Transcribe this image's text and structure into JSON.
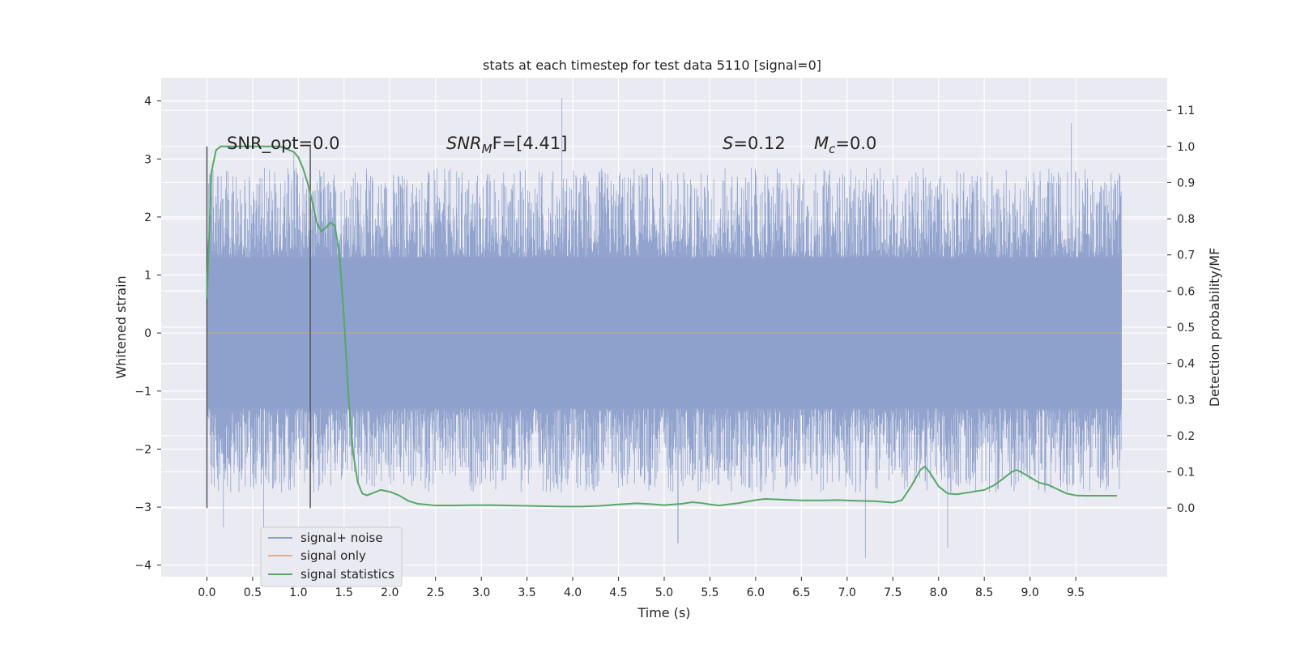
{
  "chart_data": {
    "type": "line",
    "title": "stats at each timestep for test data 5110 [signal=0]",
    "xlabel": "Time (s)",
    "ylabel": "Whitened strain",
    "ylabel_right": "Detection probability/MF",
    "xlim": [
      -0.5,
      10.5
    ],
    "ylim": [
      -4.2,
      4.4
    ],
    "ylim_right": [
      -0.19,
      1.19
    ],
    "xticks": [
      0.0,
      0.5,
      1.0,
      1.5,
      2.0,
      2.5,
      3.0,
      3.5,
      4.0,
      4.5,
      5.0,
      5.5,
      6.0,
      6.5,
      7.0,
      7.5,
      8.0,
      8.5,
      9.0,
      9.5
    ],
    "xtick_labels": [
      "0.0",
      "0.5",
      "1.0",
      "1.5",
      "2.0",
      "2.5",
      "3.0",
      "3.5",
      "4.0",
      "4.5",
      "5.0",
      "5.5",
      "6.0",
      "6.5",
      "7.0",
      "7.5",
      "8.0",
      "8.5",
      "9.0",
      "9.5"
    ],
    "yticks": [
      4,
      3,
      2,
      1,
      0,
      -1,
      -2,
      -3,
      -4
    ],
    "ytick_labels": [
      "4",
      "3",
      "2",
      "1",
      "0",
      "−1",
      "−2",
      "−3",
      "−4"
    ],
    "yticks_right": [
      1.1,
      1.0,
      0.9,
      0.8,
      0.7,
      0.6,
      0.5,
      0.4,
      0.3,
      0.2,
      0.1,
      0.0
    ],
    "ytick_labels_right": [
      "1.1",
      "1.0",
      "0.9",
      "0.8",
      "0.7",
      "0.6",
      "0.5",
      "0.4",
      "0.3",
      "0.2",
      "0.1",
      "0.0"
    ],
    "grid": true,
    "legend_position": "bottom-left",
    "annotations": {
      "snr_opt": "SNR_opt=0.0",
      "snr_mf_prefix": "SNR",
      "snr_mf_sub": "M",
      "snr_mf_suffix": "F=[4.41]",
      "s_label": "S",
      "s_value": "=0.12",
      "mc_label": "M",
      "mc_sub": "c",
      "mc_value": "=0.0"
    },
    "vertical_markers": [
      0.0,
      1.13
    ],
    "noise_envelope": {
      "x_range": [
        0.0,
        10.0
      ],
      "typical_band": [
        -1.3,
        1.3
      ],
      "notable_peaks": [
        {
          "x": 3.88,
          "y": 4.05
        },
        {
          "x": 9.45,
          "y": 3.62
        },
        {
          "x": 0.95,
          "y": 3.1
        },
        {
          "x": 5.15,
          "y": -3.62
        },
        {
          "x": 7.2,
          "y": -3.88
        },
        {
          "x": 8.1,
          "y": -3.7
        },
        {
          "x": 0.18,
          "y": -3.35
        },
        {
          "x": 0.62,
          "y": -3.35
        }
      ]
    },
    "series": [
      {
        "name": "signal+ noise",
        "color": "#8da0cb",
        "axis": "left",
        "values": "noise envelope (see noise_envelope)"
      },
      {
        "name": "signal only",
        "color": "#e8a88c",
        "axis": "left",
        "x": [
          0.0,
          10.0
        ],
        "y": [
          0.0,
          0.0
        ]
      },
      {
        "name": "signal statistics",
        "color": "#55a868",
        "axis": "right",
        "x": [
          0.0,
          0.05,
          0.1,
          0.15,
          0.2,
          0.3,
          0.4,
          0.5,
          0.6,
          0.7,
          0.8,
          0.9,
          0.95,
          1.0,
          1.05,
          1.1,
          1.15,
          1.2,
          1.25,
          1.3,
          1.35,
          1.4,
          1.45,
          1.5,
          1.55,
          1.6,
          1.65,
          1.7,
          1.75,
          1.8,
          1.9,
          2.0,
          2.1,
          2.2,
          2.3,
          2.5,
          2.7,
          2.9,
          3.1,
          3.3,
          3.5,
          3.7,
          3.9,
          4.1,
          4.3,
          4.5,
          4.7,
          4.9,
          5.0,
          5.1,
          5.2,
          5.3,
          5.4,
          5.5,
          5.6,
          5.8,
          6.0,
          6.1,
          6.3,
          6.5,
          6.7,
          6.9,
          7.1,
          7.3,
          7.5,
          7.6,
          7.7,
          7.8,
          7.85,
          7.9,
          8.0,
          8.1,
          8.2,
          8.3,
          8.5,
          8.6,
          8.7,
          8.8,
          8.85,
          8.9,
          9.0,
          9.1,
          9.2,
          9.3,
          9.4,
          9.5,
          9.6,
          9.8,
          9.95
        ],
        "y": [
          0.58,
          0.93,
          0.99,
          1.0,
          1.0,
          1.0,
          1.0,
          1.0,
          1.0,
          1.0,
          1.0,
          0.99,
          0.985,
          0.97,
          0.94,
          0.9,
          0.85,
          0.79,
          0.765,
          0.775,
          0.79,
          0.78,
          0.7,
          0.52,
          0.3,
          0.15,
          0.07,
          0.04,
          0.035,
          0.04,
          0.05,
          0.045,
          0.035,
          0.02,
          0.012,
          0.007,
          0.007,
          0.008,
          0.008,
          0.007,
          0.006,
          0.005,
          0.004,
          0.004,
          0.006,
          0.01,
          0.013,
          0.01,
          0.008,
          0.01,
          0.012,
          0.016,
          0.014,
          0.01,
          0.007,
          0.013,
          0.022,
          0.025,
          0.023,
          0.021,
          0.021,
          0.022,
          0.02,
          0.019,
          0.015,
          0.022,
          0.06,
          0.105,
          0.115,
          0.1,
          0.06,
          0.04,
          0.038,
          0.042,
          0.05,
          0.062,
          0.08,
          0.1,
          0.105,
          0.1,
          0.085,
          0.07,
          0.064,
          0.052,
          0.04,
          0.035,
          0.034,
          0.034,
          0.034
        ]
      }
    ]
  }
}
